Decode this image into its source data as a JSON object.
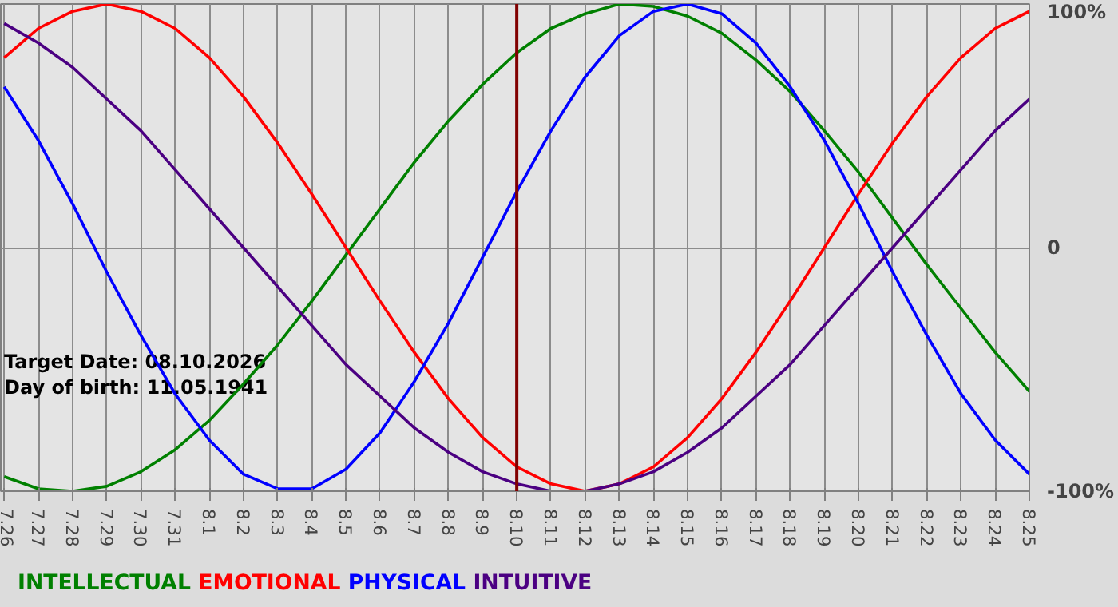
{
  "chart_data": {
    "type": "line",
    "categories": [
      "7.26",
      "7.27",
      "7.28",
      "7.29",
      "7.30",
      "7.31",
      "8.1",
      "8.2",
      "8.3",
      "8.4",
      "8.5",
      "8.6",
      "8.7",
      "8.8",
      "8.9",
      "8.10",
      "8.11",
      "8.12",
      "8.13",
      "8.14",
      "8.15",
      "8.16",
      "8.17",
      "8.18",
      "8.19",
      "8.20",
      "8.21",
      "8.22",
      "8.23",
      "8.24",
      "8.25"
    ],
    "series": [
      {
        "name": "INTELLECTUAL",
        "color": "#008000",
        "values": [
          -94,
          -99,
          -100,
          -98,
          -92,
          -83,
          -71,
          -56,
          -40,
          -22,
          -3,
          16,
          35,
          52,
          67,
          80,
          90,
          96,
          100,
          99,
          95,
          88,
          77,
          64,
          48,
          31,
          12,
          -7,
          -25,
          -43,
          -59
        ]
      },
      {
        "name": "EMOTIONAL",
        "color": "#ff0000",
        "values": [
          78,
          90,
          97,
          100,
          97,
          90,
          78,
          62,
          43,
          22,
          0,
          -22,
          -43,
          -62,
          -78,
          -90,
          -97,
          -100,
          -97,
          -90,
          -78,
          -62,
          -43,
          -22,
          0,
          22,
          43,
          62,
          78,
          90,
          97
        ]
      },
      {
        "name": "PHYSICAL",
        "color": "#0000ff",
        "values": [
          66,
          44,
          18,
          -10,
          -36,
          -60,
          -79,
          -93,
          -99,
          -99,
          -91,
          -76,
          -55,
          -31,
          -4,
          23,
          48,
          70,
          87,
          97,
          100,
          96,
          84,
          66,
          44,
          18,
          -10,
          -36,
          -60,
          -79,
          -93
        ]
      },
      {
        "name": "INTUITIVE",
        "color": "#4b0082",
        "values": [
          92,
          84,
          74,
          61,
          48,
          32,
          16,
          0,
          -16,
          -32,
          -48,
          -61,
          -74,
          -84,
          -92,
          -97,
          -100,
          -100,
          -97,
          -92,
          -84,
          -74,
          -61,
          -48,
          -32,
          -16,
          0,
          16,
          32,
          48,
          61
        ]
      }
    ],
    "ylim": [
      -100,
      100
    ],
    "yticks": [
      {
        "value": 100,
        "label": "100%"
      },
      0,
      {
        "value": -100,
        "label": "-100%"
      }
    ],
    "grid": true,
    "legend": "bottom",
    "ref_lines": [
      {
        "axis": "x",
        "value": "8.10",
        "color": "#800000"
      }
    ],
    "annotations": [
      "Target Date: 08.10.2026",
      "Day of birth: 11.05.1941"
    ]
  }
}
